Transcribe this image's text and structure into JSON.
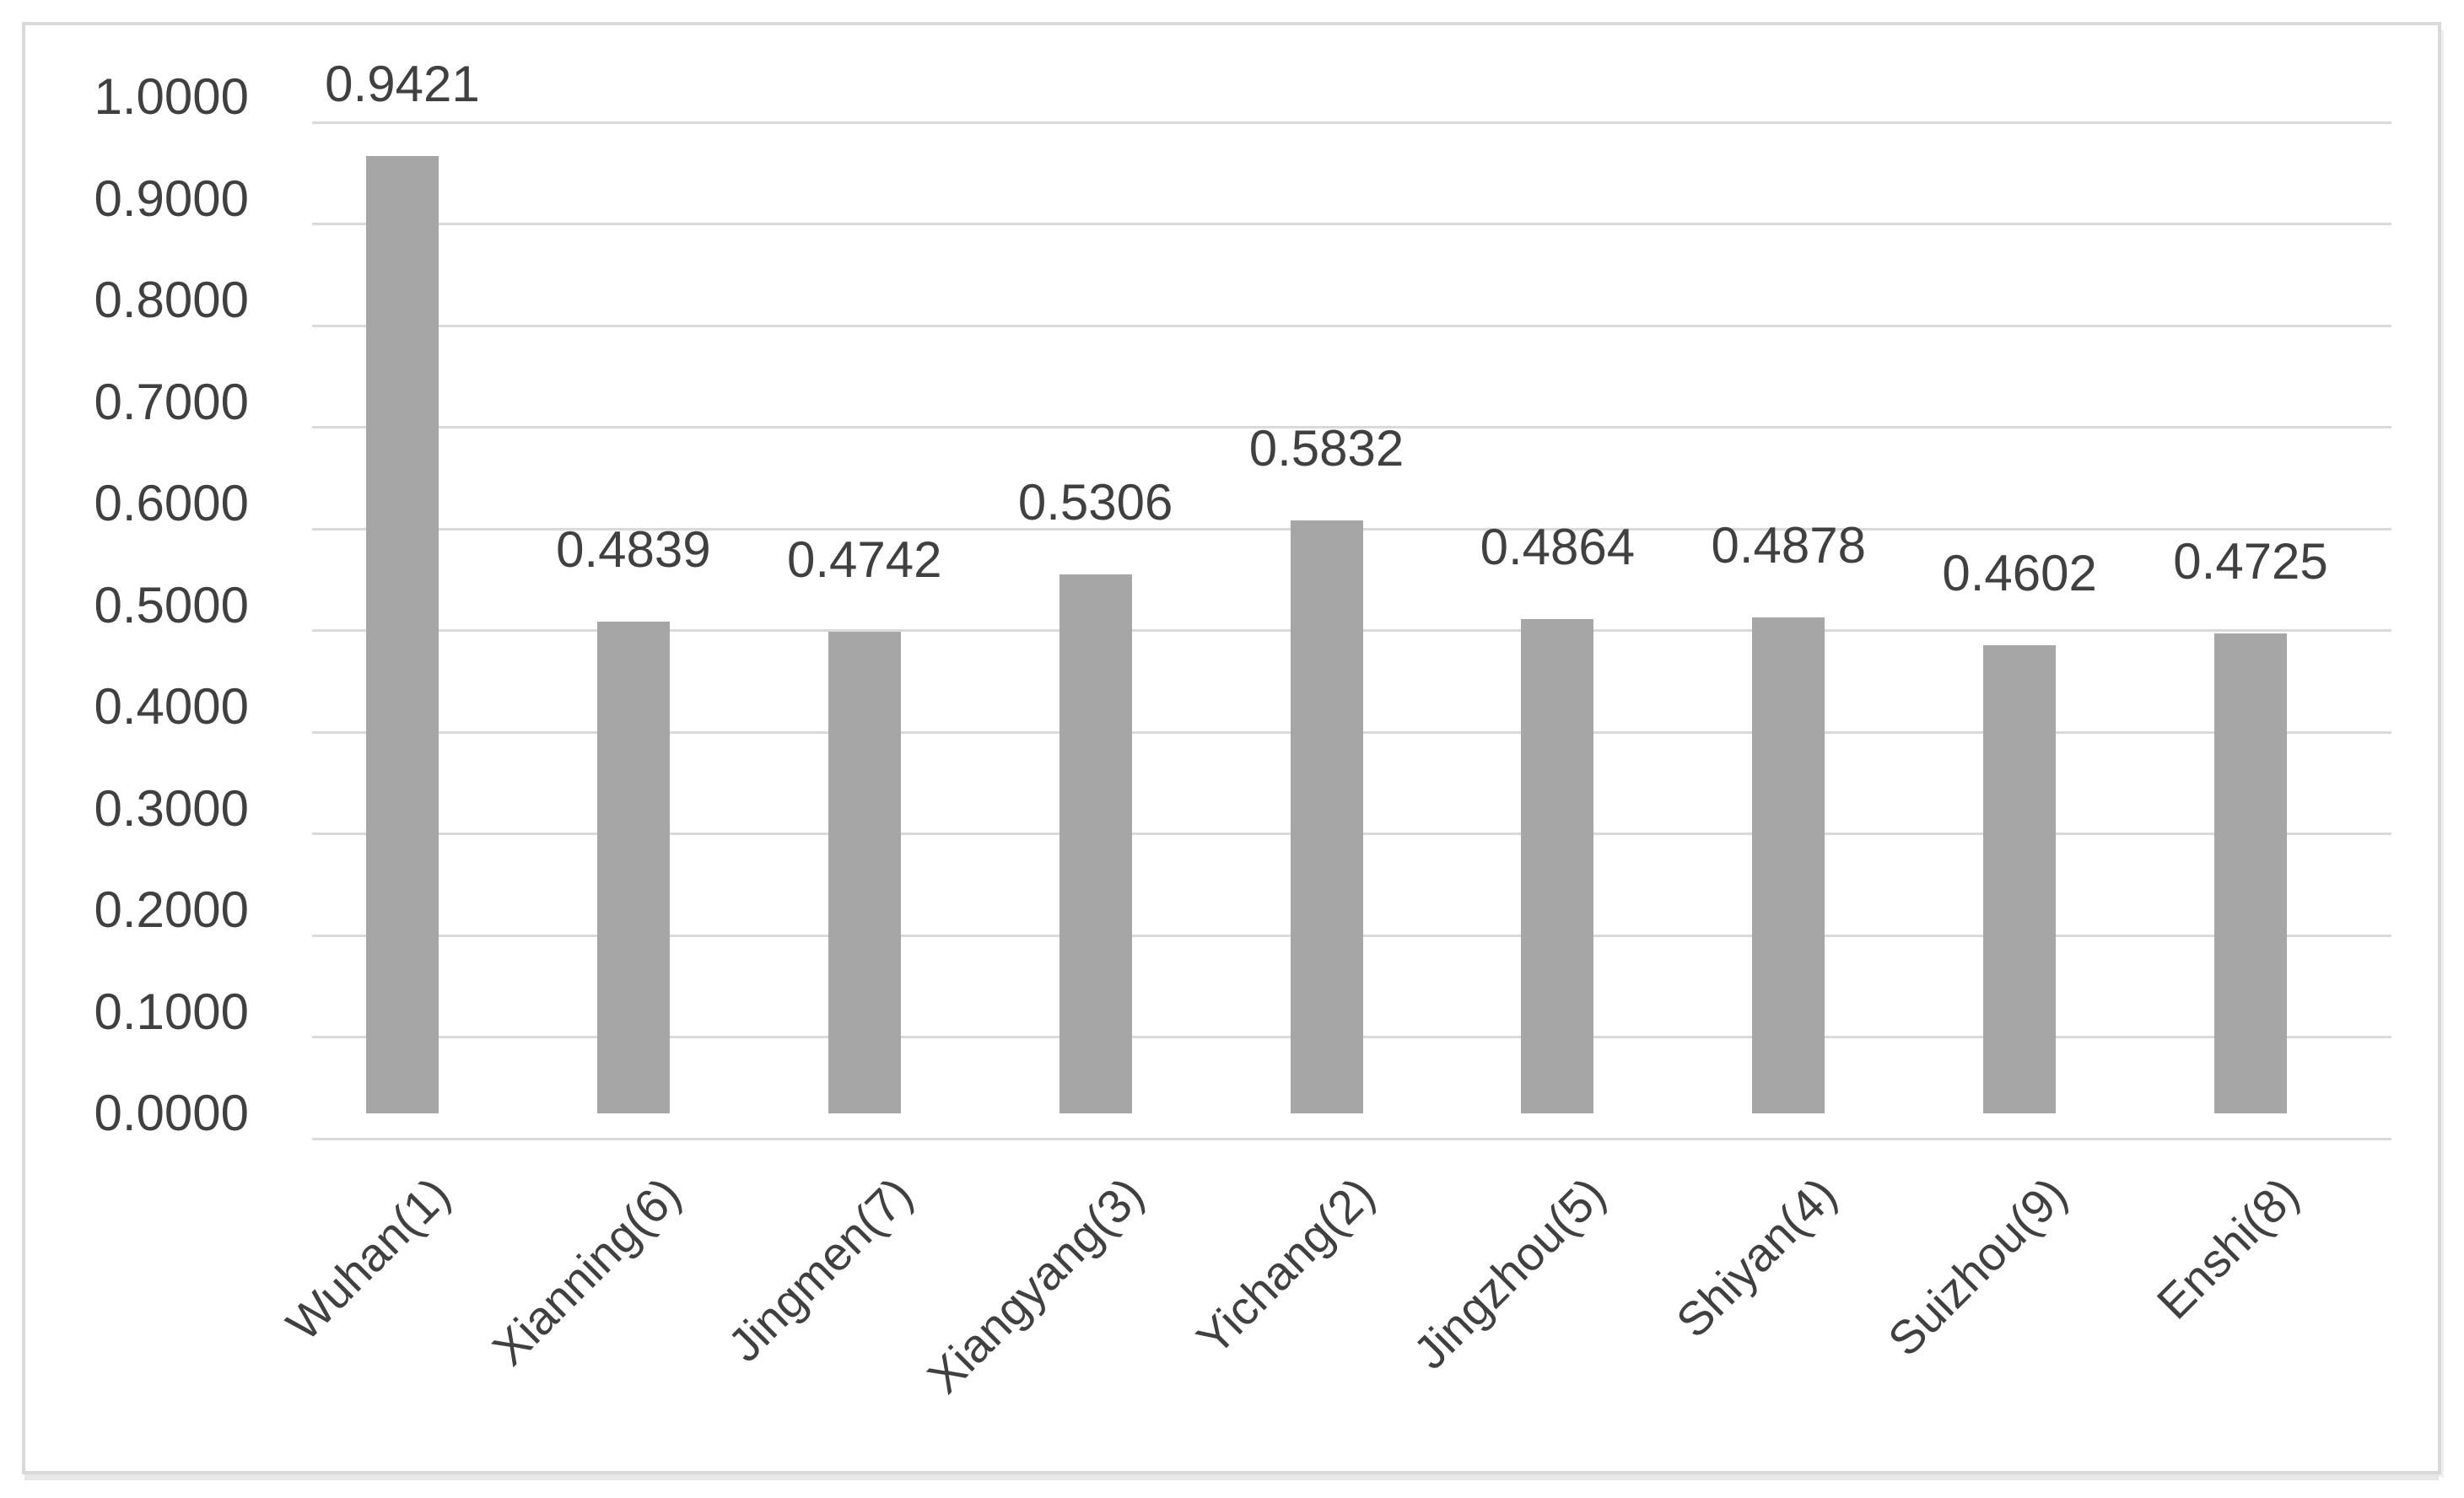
{
  "chart_data": {
    "type": "bar",
    "title": "",
    "xlabel": "",
    "ylabel": "",
    "categories": [
      "Wuhan(1)",
      "Xianning(6)",
      "Jingmen(7)",
      "Xiangyang(3)",
      "Yichang(2)",
      "Jingzhou(5)",
      "Shiyan(4)",
      "Suizhou(9)",
      "Enshi(8)"
    ],
    "values": [
      0.9421,
      0.4839,
      0.4742,
      0.5306,
      0.5832,
      0.4864,
      0.4878,
      0.4602,
      0.4725
    ],
    "value_labels": [
      "0.9421",
      "0.4839",
      "0.4742",
      "0.5306",
      "0.5832",
      "0.4864",
      "0.4878",
      "0.4602",
      "0.4725"
    ],
    "y_ticks": [
      "0.0000",
      "0.1000",
      "0.2000",
      "0.3000",
      "0.4000",
      "0.5000",
      "0.6000",
      "0.7000",
      "0.8000",
      "0.9000",
      "1.0000"
    ],
    "ylim": [
      0,
      1
    ],
    "ytick_step": 0.1,
    "grid": true,
    "legend": false,
    "data_label_position": "outside-end",
    "x_label_rotation_deg": 45,
    "colors": {
      "bar_fill": "#a6a6a6",
      "gridline": "#d9d9d9",
      "frame_border": "#d9d9d9",
      "axis_text": "#404040",
      "background": "#ffffff"
    }
  }
}
